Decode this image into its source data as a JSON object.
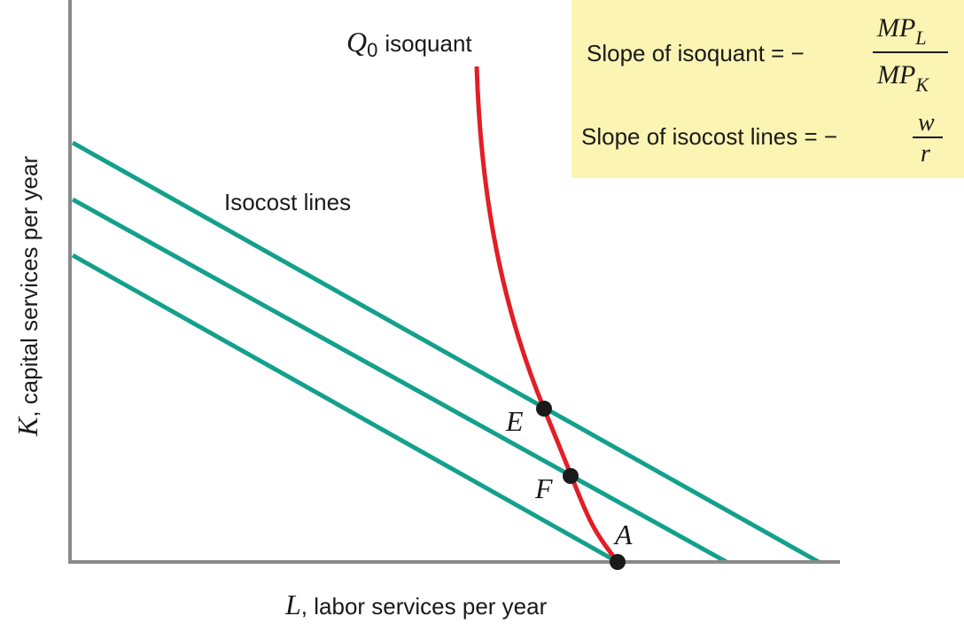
{
  "colors": {
    "isocost": "#13a08c",
    "isoquant": "#e21e26",
    "axis": "#8a8a8a",
    "point": "#1a1a1a",
    "box_fill": "#fbf4b3",
    "text": "#1a1a1a"
  },
  "labels": {
    "isoquant_Q": "Q",
    "isoquant_sub": "0",
    "isoquant_word": "isoquant",
    "isocost": "Isocost lines",
    "x_var": "L",
    "x_rest": ", labor services per year",
    "y_var": "K",
    "y_rest": ", capital services per year"
  },
  "points": [
    {
      "name": "E",
      "label": "E"
    },
    {
      "name": "F",
      "label": "F"
    },
    {
      "name": "A",
      "label": "A"
    }
  ],
  "formula_box": {
    "isoquant_text": "Slope of isoquant = −",
    "mp": "MP",
    "mp_L_sub": "L",
    "mp_K_sub": "K",
    "isocost_text": "Slope of isocost lines = −",
    "w": "w",
    "r": "r"
  }
}
